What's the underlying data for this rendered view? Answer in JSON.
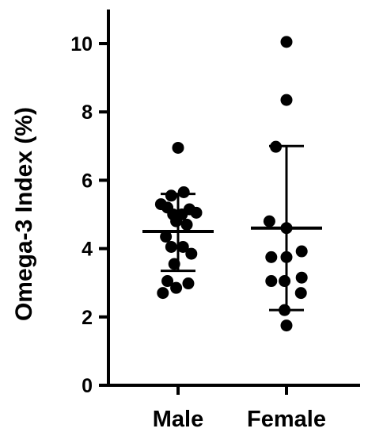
{
  "chart_data": {
    "type": "scatter",
    "ylabel": "Omega-3  Index (%)",
    "ylim": [
      0,
      11
    ],
    "yticks": [
      0,
      2,
      4,
      6,
      8,
      10
    ],
    "categories": [
      "Male",
      "Female"
    ],
    "groups": [
      {
        "category": "Male",
        "mean": 4.5,
        "sd_low": 3.35,
        "sd_high": 5.6,
        "points": [
          {
            "x": 0.0,
            "y": 6.95
          },
          {
            "x": 0.15,
            "y": 5.65
          },
          {
            "x": -0.18,
            "y": 5.55
          },
          {
            "x": -0.45,
            "y": 5.3
          },
          {
            "x": -0.28,
            "y": 5.2
          },
          {
            "x": 0.3,
            "y": 5.15
          },
          {
            "x": -0.13,
            "y": 5.0
          },
          {
            "x": 0.1,
            "y": 5.0
          },
          {
            "x": 0.48,
            "y": 5.05
          },
          {
            "x": -0.05,
            "y": 4.8
          },
          {
            "x": 0.23,
            "y": 4.7
          },
          {
            "x": -0.32,
            "y": 4.35
          },
          {
            "x": -0.18,
            "y": 4.05
          },
          {
            "x": 0.13,
            "y": 4.05
          },
          {
            "x": 0.35,
            "y": 3.85
          },
          {
            "x": -0.1,
            "y": 3.55
          },
          {
            "x": -0.28,
            "y": 3.05
          },
          {
            "x": 0.27,
            "y": 2.98
          },
          {
            "x": -0.05,
            "y": 2.85
          },
          {
            "x": -0.4,
            "y": 2.7
          }
        ]
      },
      {
        "category": "Female",
        "mean": 4.6,
        "sd_low": 2.2,
        "sd_high": 7.0,
        "points": [
          {
            "x": 0.0,
            "y": 10.05
          },
          {
            "x": 0.0,
            "y": 8.35
          },
          {
            "x": -0.28,
            "y": 6.98
          },
          {
            "x": -0.45,
            "y": 4.8
          },
          {
            "x": 0.0,
            "y": 4.6
          },
          {
            "x": -0.4,
            "y": 3.75
          },
          {
            "x": 0.0,
            "y": 3.75
          },
          {
            "x": 0.4,
            "y": 3.92
          },
          {
            "x": -0.4,
            "y": 3.05
          },
          {
            "x": -0.05,
            "y": 3.05
          },
          {
            "x": 0.4,
            "y": 3.15
          },
          {
            "x": 0.38,
            "y": 2.7
          },
          {
            "x": -0.05,
            "y": 2.2
          },
          {
            "x": 0.0,
            "y": 1.75
          }
        ]
      }
    ]
  }
}
